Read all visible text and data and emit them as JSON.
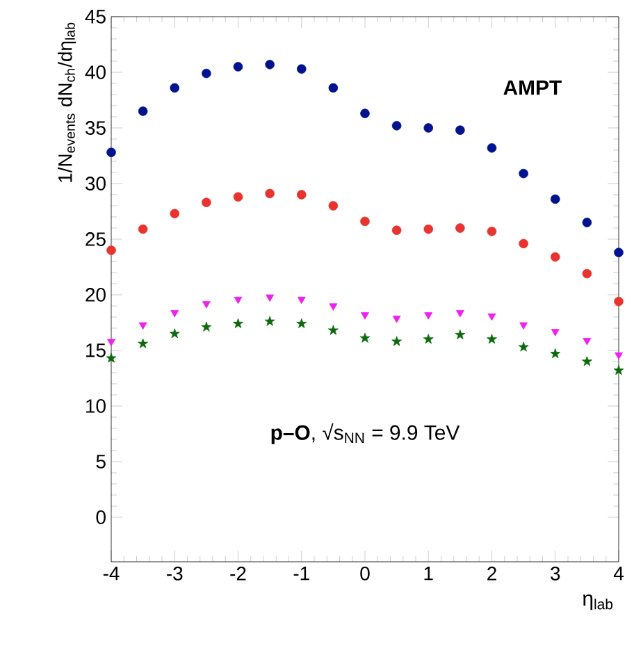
{
  "chart_data": {
    "type": "scatter",
    "xlabel": "η$_{lab}$",
    "ylabel": "1/N$_{events}$ dN$_{ch}$/dη$_{lab}$",
    "annotations": [
      "AMPT",
      "**p–O**, √s$_{NN}$ = 9.9 TeV"
    ],
    "x": [
      -4,
      -3.5,
      -3,
      -2.5,
      -2,
      -1.5,
      -1,
      -0.5,
      0,
      0.5,
      1,
      1.5,
      2,
      2.5,
      3,
      3.5,
      4
    ],
    "series": [
      {
        "color": "#00138f",
        "marker": "circle",
        "values": [
          32.8,
          36.5,
          38.6,
          39.9,
          40.5,
          40.7,
          40.3,
          38.6,
          36.3,
          35.2,
          35.0,
          34.8,
          33.2,
          30.9,
          28.6,
          26.5,
          23.8
        ]
      },
      {
        "color": "#e8332f",
        "marker": "circle",
        "values": [
          24.0,
          25.9,
          27.3,
          28.3,
          28.8,
          29.1,
          29.0,
          28.0,
          26.6,
          25.8,
          25.9,
          26.0,
          25.7,
          24.6,
          23.4,
          21.9,
          19.4
        ]
      },
      {
        "color": "#f020f0",
        "marker": "triangle",
        "values": [
          15.8,
          17.3,
          18.4,
          19.2,
          19.6,
          19.8,
          19.6,
          19.0,
          18.2,
          17.9,
          18.2,
          18.4,
          18.1,
          17.3,
          16.7,
          15.9,
          14.6
        ]
      },
      {
        "color": "#0b6b0b",
        "marker": "star",
        "values": [
          14.3,
          15.6,
          16.5,
          17.1,
          17.4,
          17.6,
          17.4,
          16.8,
          16.1,
          15.8,
          16.0,
          16.4,
          16.0,
          15.3,
          14.7,
          14.0,
          13.2
        ]
      }
    ],
    "xlim": [
      -4,
      4
    ],
    "ylim": [
      -4,
      45
    ],
    "xticks": [
      -4,
      -3,
      -2,
      -1,
      0,
      1,
      2,
      3,
      4
    ],
    "yticks": [
      0,
      5,
      10,
      15,
      20,
      25,
      30,
      35,
      40,
      45
    ]
  }
}
